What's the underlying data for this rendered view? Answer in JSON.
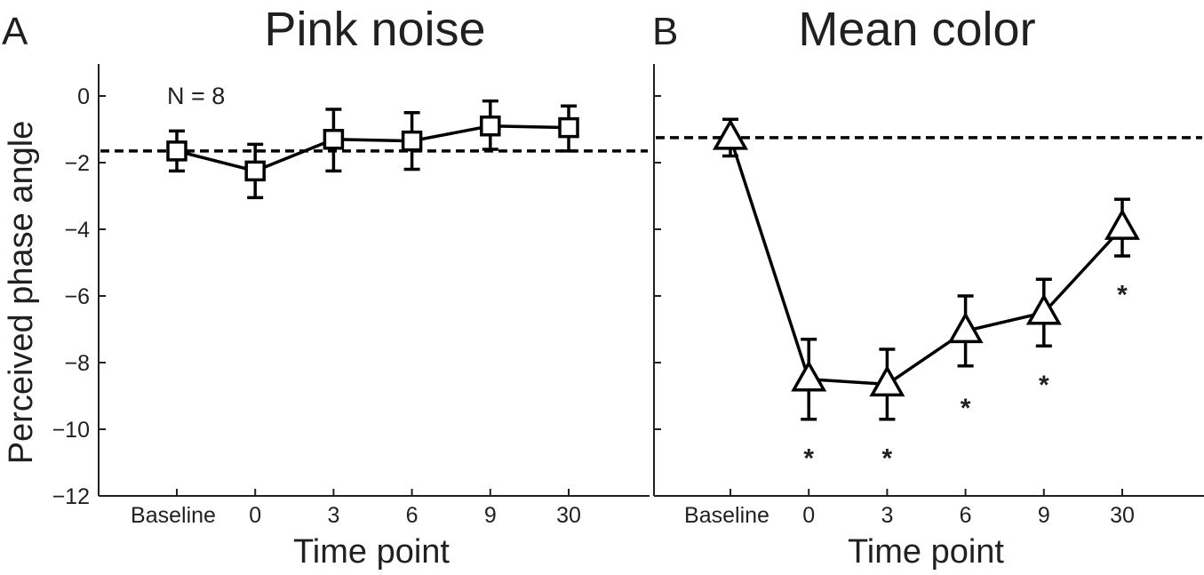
{
  "chart_data": [
    {
      "type": "line",
      "panel_letter": "A",
      "title": "Pink noise",
      "xlabel": "Time point",
      "ylabel": "Perceived phase angle",
      "categories": [
        "Baseline",
        "0",
        "3",
        "6",
        "9",
        "30"
      ],
      "ylim": [
        -12,
        1
      ],
      "yticks": [
        0,
        -2,
        -4,
        -6,
        -8,
        -10,
        -12
      ],
      "ytick_labels": [
        "0",
        "−2",
        "−4",
        "−6",
        "−8",
        "−10",
        "−12"
      ],
      "marker": "square",
      "values": [
        -1.65,
        -2.25,
        -1.3,
        -1.35,
        -0.9,
        -0.95
      ],
      "error_low": [
        -2.25,
        -3.05,
        -2.25,
        -2.2,
        -1.6,
        -1.65
      ],
      "error_high": [
        -1.05,
        -1.45,
        -0.4,
        -0.5,
        -0.15,
        -0.3
      ],
      "reference_y": -1.65,
      "annotation": "N = 8",
      "significance": []
    },
    {
      "type": "line",
      "panel_letter": "B",
      "title": "Mean color",
      "xlabel": "Time point",
      "ylabel": "",
      "categories": [
        "Baseline",
        "0",
        "3",
        "6",
        "9",
        "30"
      ],
      "ylim": [
        -12,
        1
      ],
      "yticks": [
        0,
        -2,
        -4,
        -6,
        -8,
        -10,
        -12
      ],
      "ytick_labels": [],
      "marker": "triangle",
      "values": [
        -1.25,
        -8.5,
        -8.65,
        -7.05,
        -6.5,
        -3.95
      ],
      "error_low": [
        -1.8,
        -9.7,
        -9.7,
        -8.1,
        -7.5,
        -4.8
      ],
      "error_high": [
        -0.7,
        -7.3,
        -7.6,
        -6.0,
        -5.5,
        -3.1
      ],
      "reference_y": -1.25,
      "annotation": "",
      "significance": [
        "",
        "*",
        "*",
        "*",
        "*",
        "*"
      ],
      "significance_y": [
        0,
        -10.7,
        -10.7,
        -9.2,
        -8.5,
        -5.8
      ]
    }
  ]
}
